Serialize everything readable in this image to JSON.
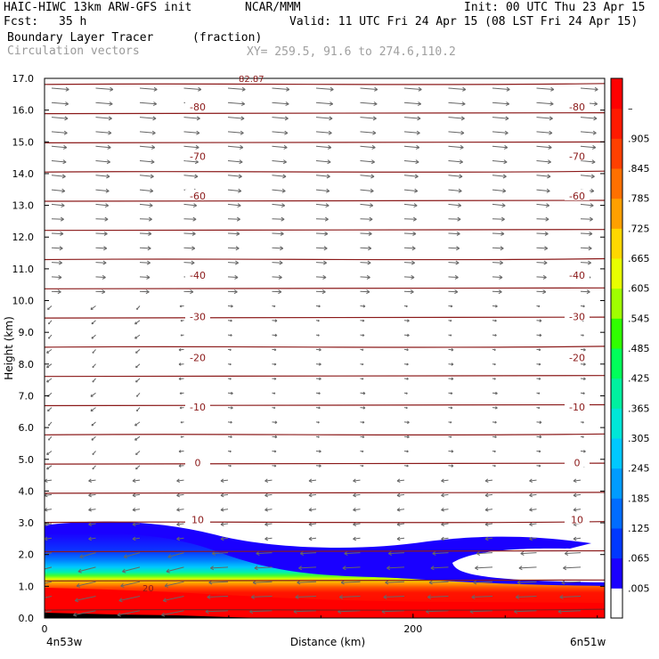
{
  "header": {
    "model": "HAIC-HIWC 13km ARW-GFS init",
    "org": "NCAR/MMM",
    "init": "Init: 00 UTC Thu 23 Apr 15",
    "fcst_label": "Fcst:",
    "fcst_value": "35 h",
    "valid": "Valid: 11 UTC Fri 24 Apr 15 (08 LST Fri 24 Apr 15)",
    "field": "Boundary Layer Tracer",
    "units": "(fraction)",
    "vectors": "Circulation vectors",
    "xy": "XY= 259.5, 91.6 to 274.6,110.2"
  },
  "chart_data": {
    "type": "heatmap",
    "ylabel": "Height (km)",
    "xlabel": "Distance (km)",
    "x_start_label": "4n53w",
    "x_end_label": "6n51w",
    "ylim": [
      0,
      17
    ],
    "xlim": [
      0,
      304
    ],
    "y_ticks": [
      "0.0",
      "1.0",
      "2.0",
      "3.0",
      "4.0",
      "5.0",
      "6.0",
      "7.0",
      "8.0",
      "9.0",
      "10.0",
      "11.0",
      "12.0",
      "13.0",
      "14.0",
      "15.0",
      "16.0",
      "17.0"
    ],
    "x_ticks": [
      "0",
      "200"
    ],
    "x_tick_values": [
      0,
      200
    ],
    "colorbar_labels": [
      ".005",
      ".065",
      ".125",
      ".185",
      ".245",
      ".305",
      ".365",
      ".425",
      ".485",
      ".545",
      ".605",
      ".665",
      ".725",
      ".785",
      ".845",
      ".905",
      "–"
    ],
    "colorbar_colors": [
      "#ffffff",
      "#1a00ff",
      "#0038ff",
      "#006cff",
      "#009cff",
      "#00c8ff",
      "#00e6d8",
      "#00f0a0",
      "#00ff5a",
      "#30ff00",
      "#a0ff00",
      "#e8ff00",
      "#ffd800",
      "#ffa000",
      "#ff7000",
      "#ff4000",
      "#ff1a00",
      "#ff0000"
    ],
    "isotherm_levels": [
      {
        "label": "10",
        "y": 3.1
      },
      {
        "label": "0",
        "y": 4.9
      },
      {
        "label": "-10",
        "y": 6.65
      },
      {
        "label": "-20",
        "y": 8.2
      },
      {
        "label": "-30",
        "y": 9.5
      },
      {
        "label": "-40",
        "y": 10.8
      },
      {
        "label": "-60",
        "y": 13.3
      },
      {
        "label": "-70",
        "y": 14.55
      },
      {
        "label": "-80",
        "y": 16.1
      }
    ],
    "top_label": "82.87",
    "bottom_label": "20",
    "line_color": "#8b1a1a",
    "vector_color": "#666666",
    "grid": false,
    "legend": "right colorbar"
  }
}
